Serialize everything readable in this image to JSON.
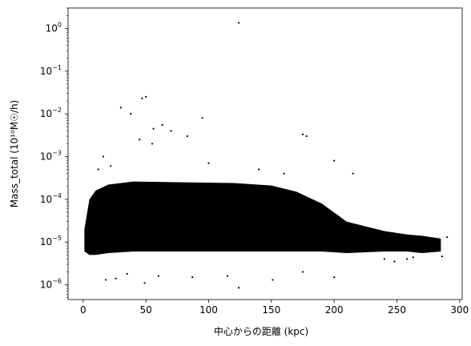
{
  "chart_data": {
    "type": "scatter",
    "title": "",
    "xlabel": "中心からの距離 (kpc)",
    "ylabel": "Mass_total (10¹⁰M☉/h)",
    "xlim": [
      -12,
      302
    ],
    "ylim": [
      4.5e-07,
      3.0
    ],
    "yscale": "log",
    "grid": false,
    "marker_color": "#000000",
    "x_ticks": [
      0,
      50,
      100,
      150,
      200,
      250,
      300
    ],
    "y_ticks": [
      {
        "value": 1e-06,
        "base": "10",
        "exp": "−6"
      },
      {
        "value": 1e-05,
        "base": "10",
        "exp": "−5"
      },
      {
        "value": 0.0001,
        "base": "10",
        "exp": "−4"
      },
      {
        "value": 0.001,
        "base": "10",
        "exp": "−3"
      },
      {
        "value": 0.01,
        "base": "10",
        "exp": "−2"
      },
      {
        "value": 0.1,
        "base": "10",
        "exp": "−1"
      },
      {
        "value": 1,
        "base": "10",
        "exp": "0"
      }
    ],
    "dense_band": [
      [
        1,
        6e-06,
        2e-05
      ],
      [
        5,
        5e-06,
        0.0001
      ],
      [
        10,
        5e-06,
        0.00016
      ],
      [
        20,
        5.5e-06,
        0.00022
      ],
      [
        40,
        6e-06,
        0.00026
      ],
      [
        80,
        6e-06,
        0.00025
      ],
      [
        120,
        6e-06,
        0.00024
      ],
      [
        150,
        6e-06,
        0.00021
      ],
      [
        170,
        6e-06,
        0.00015
      ],
      [
        190,
        6e-06,
        8e-05
      ],
      [
        210,
        5.5e-06,
        3e-05
      ],
      [
        240,
        6e-06,
        1.8e-05
      ],
      [
        258,
        6e-06,
        1.5e-05
      ],
      [
        270,
        5.5e-06,
        1.4e-05
      ],
      [
        285,
        6e-06,
        1.2e-05
      ]
    ],
    "outliers": [
      {
        "x": 124,
        "y": 1.35
      },
      {
        "x": 47,
        "y": 0.023
      },
      {
        "x": 50,
        "y": 0.025
      },
      {
        "x": 30,
        "y": 0.014
      },
      {
        "x": 38,
        "y": 0.01
      },
      {
        "x": 95,
        "y": 0.008
      },
      {
        "x": 56,
        "y": 0.0045
      },
      {
        "x": 63,
        "y": 0.0055
      },
      {
        "x": 70,
        "y": 0.004
      },
      {
        "x": 175,
        "y": 0.0033
      },
      {
        "x": 178,
        "y": 0.003
      },
      {
        "x": 83,
        "y": 0.003
      },
      {
        "x": 45,
        "y": 0.0025
      },
      {
        "x": 55,
        "y": 0.002
      },
      {
        "x": 16,
        "y": 0.001
      },
      {
        "x": 200,
        "y": 0.0008
      },
      {
        "x": 215,
        "y": 0.0004
      },
      {
        "x": 22,
        "y": 0.0006
      },
      {
        "x": 12,
        "y": 0.0005
      },
      {
        "x": 140,
        "y": 0.0005
      },
      {
        "x": 100,
        "y": 0.0007
      },
      {
        "x": 160,
        "y": 0.0004
      },
      {
        "x": 124,
        "y": 8.5e-07
      },
      {
        "x": 49,
        "y": 1.1e-06
      },
      {
        "x": 87,
        "y": 1.5e-06
      },
      {
        "x": 151,
        "y": 1.3e-06
      },
      {
        "x": 18,
        "y": 1.3e-06
      },
      {
        "x": 200,
        "y": 1.5e-06
      },
      {
        "x": 26,
        "y": 1.4e-06
      },
      {
        "x": 115,
        "y": 1.6e-06
      },
      {
        "x": 60,
        "y": 1.6e-06
      },
      {
        "x": 175,
        "y": 2e-06
      },
      {
        "x": 35,
        "y": 1.8e-06
      },
      {
        "x": 248,
        "y": 3.5e-06
      },
      {
        "x": 258,
        "y": 4e-06
      },
      {
        "x": 263,
        "y": 4.4e-06
      },
      {
        "x": 290,
        "y": 1.3e-05
      },
      {
        "x": 286,
        "y": 4.6e-06
      },
      {
        "x": 240,
        "y": 4e-06
      }
    ]
  }
}
